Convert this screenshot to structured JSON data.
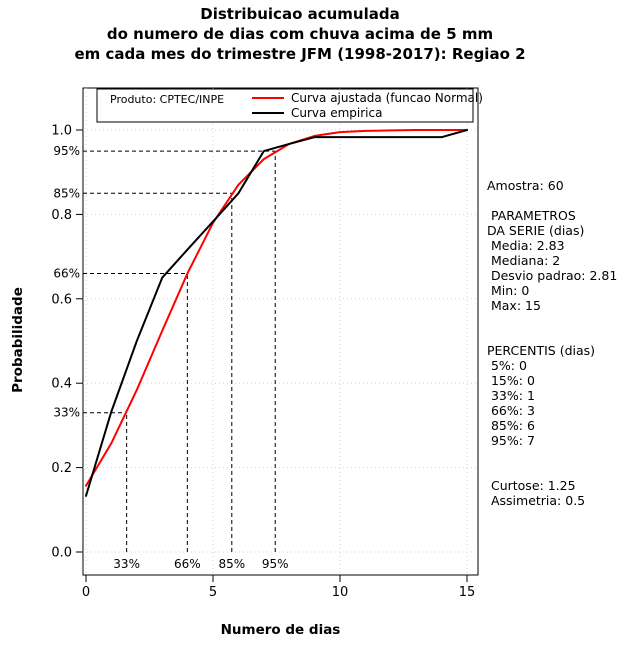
{
  "chart_data": {
    "type": "line",
    "title_lines": [
      "Distribuicao acumulada",
      "do numero de dias com chuva acima de 5 mm",
      "em cada mes do trimestre JFM (1998-2017): Regiao 2"
    ],
    "xlabel": "Numero de dias",
    "ylabel": "Probabilidade",
    "xlim": [
      0,
      15
    ],
    "ylim": [
      0,
      1
    ],
    "x_ticks": [
      0,
      5,
      10,
      15
    ],
    "x_tick_labels": [
      "0",
      "5",
      "10",
      "15"
    ],
    "y_ticks": [
      0,
      0.2,
      0.4,
      0.6,
      0.8,
      1
    ],
    "y_tick_labels": [
      "0.0",
      "0.2",
      "0.4",
      "0.6",
      "0.8",
      "1.0"
    ],
    "grid": true,
    "legend_position": "top",
    "x": [
      0,
      1,
      2,
      3,
      4,
      5,
      6,
      7,
      8,
      9,
      10,
      11,
      12,
      13,
      14,
      15
    ],
    "series": [
      {
        "name": "Curva ajustada (funcao Normal)",
        "color": "#ff0000",
        "values": [
          0.157,
          0.258,
          0.384,
          0.524,
          0.661,
          0.78,
          0.87,
          0.931,
          0.967,
          0.986,
          0.995,
          0.998,
          0.999,
          1.0,
          1.0,
          1.0
        ]
      },
      {
        "name": "Curva empirica",
        "color": "#000000",
        "values": [
          0.133,
          0.333,
          0.5,
          0.65,
          0.717,
          0.783,
          0.85,
          0.95,
          0.967,
          0.983,
          0.983,
          0.983,
          0.983,
          0.983,
          0.983,
          1.0
        ]
      }
    ],
    "percentile_guides": [
      {
        "label": "33%",
        "probability": 0.33,
        "x": 1.6
      },
      {
        "label": "66%",
        "probability": 0.66,
        "x": 3.99
      },
      {
        "label": "85%",
        "probability": 0.85,
        "x": 5.74
      },
      {
        "label": "95%",
        "probability": 0.95,
        "x": 7.45
      }
    ],
    "legend": {
      "entries": [
        {
          "label": "Curva ajustada (funcao Normal)",
          "color": "#ff0000"
        },
        {
          "label": "Curva empirica",
          "color": "#000000"
        }
      ],
      "note": "Produto: CPTEC/INPE"
    },
    "stats": {
      "amostra": 60,
      "media": 2.83,
      "mediana": 2,
      "desvio_padrao": 2.81,
      "min": 0,
      "max": 15,
      "percentis": {
        "5%": 0,
        "15%": 0,
        "33%": 1,
        "66%": 3,
        "85%": 6,
        "95%": 7
      },
      "curtose": 1.25,
      "assimetria": 0.5
    }
  },
  "stats_panel": {
    "lines": [
      "Amostra: 60",
      "",
      " PARAMETROS",
      "DA SERIE (dias)",
      " Media: 2.83",
      " Mediana: 2",
      " Desvio padrao: 2.81",
      " Min: 0",
      " Max: 15",
      "",
      "",
      "PERCENTIS (dias)",
      " 5%: 0",
      " 15%: 0",
      " 33%: 1",
      " 66%: 3",
      " 85%: 6",
      " 95%: 7",
      "",
      "",
      " Curtose: 1.25",
      " Assimetria: 0.5"
    ]
  },
  "colors": {
    "background": "#ffffff",
    "axis": "#000000",
    "grid": "#d3d3d3",
    "guide": "#000000",
    "fitted": "#ff0000",
    "empirical": "#000000"
  }
}
